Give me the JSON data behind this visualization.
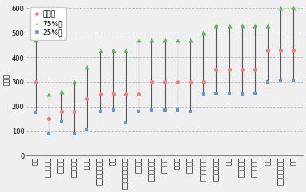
{
  "categories": [
    "全体",
    "ポルトガル",
    "ブラジル",
    "コロンビア",
    "インド",
    "オーストラリア",
    "中国",
    "ニュージーランド",
    "アメリカ",
    "アルゼンチン",
    "ベルギー",
    "カナダ",
    "スペイン",
    "スウェーデン",
    "チェコ共和国",
    "香港",
    "リトアニア",
    "ノルウェー",
    "台湾",
    "サウジアラビア",
    "日本"
  ],
  "median": [
    300,
    150,
    180,
    180,
    230,
    250,
    250,
    250,
    250,
    300,
    300,
    300,
    300,
    300,
    350,
    350,
    350,
    350,
    430,
    430,
    430
  ],
  "p75": [
    470,
    250,
    260,
    300,
    360,
    430,
    430,
    430,
    470,
    470,
    470,
    470,
    470,
    500,
    530,
    530,
    530,
    530,
    530,
    600,
    600
  ],
  "p25": [
    175,
    90,
    140,
    90,
    105,
    180,
    185,
    135,
    180,
    185,
    185,
    185,
    180,
    250,
    255,
    255,
    250,
    255,
    300,
    305,
    305
  ],
  "background_color": "#efefef",
  "plot_bg_color": "#efefef",
  "median_color": "#f08080",
  "p75_color": "#5cb85c",
  "p25_color": "#5b9bd5",
  "line_color": "#555555",
  "ylabel": "（分）",
  "ylim": [
    0,
    620
  ],
  "yticks": [
    0,
    100,
    200,
    300,
    400,
    500,
    600
  ],
  "legend_labels": [
    "中央値",
    "75%値",
    "25%値"
  ],
  "tick_fontsize": 6.0,
  "legend_fontsize": 6.5
}
